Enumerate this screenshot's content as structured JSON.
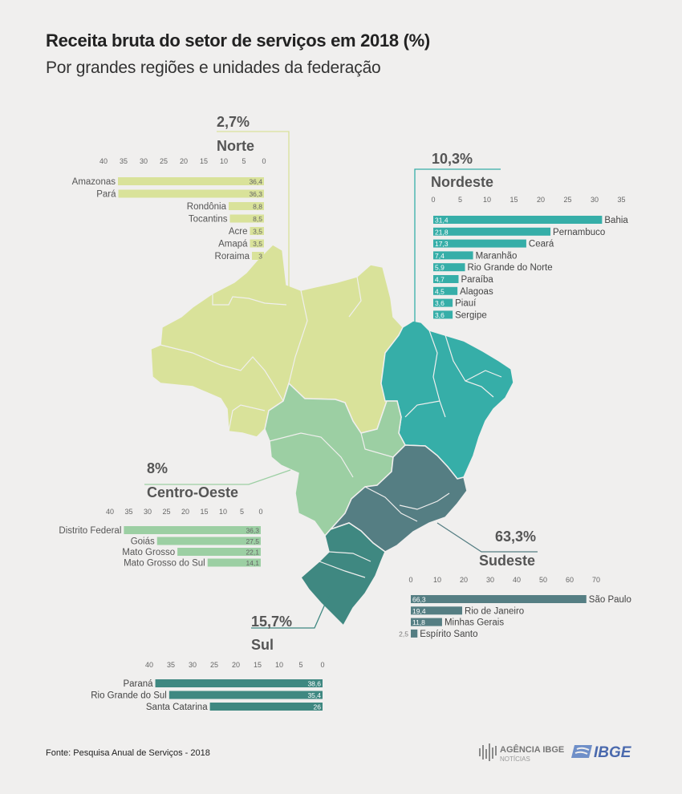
{
  "title": "Receita bruta do setor de serviços em 2018 (%)",
  "subtitle": "Por grandes regiões e unidades da federação",
  "source": "Fonte: Pesquisa Anual de Serviços - 2018",
  "logos": {
    "agencia_top": "AGÊNCIA IBGE",
    "agencia_bottom": "NOTÍCIAS",
    "ibge": "IBGE"
  },
  "colors": {
    "norte": "#d9e29a",
    "nordeste": "#36aea8",
    "centro_oeste": "#9ccfa3",
    "sudeste": "#557e83",
    "sul": "#3f8881",
    "background": "#f0efee"
  },
  "chart_data": [
    {
      "type": "bar",
      "region": "Norte",
      "region_share": "2,7%",
      "orientation": "horizontal",
      "direction": "right-to-left",
      "ticks": [
        "40",
        "35",
        "30",
        "25",
        "20",
        "15",
        "10",
        "5",
        "0"
      ],
      "xlim": [
        0,
        40
      ],
      "categories": [
        "Amazonas",
        "Pará",
        "Rondônia",
        "Tocantins",
        "Acre",
        "Amapá",
        "Roraima"
      ],
      "values": [
        36.4,
        36.3,
        8.8,
        8.5,
        3.5,
        3.5,
        3
      ],
      "value_labels": [
        "36,4",
        "36,3",
        "8,8",
        "8,5",
        "3,5",
        "3,5",
        "3"
      ]
    },
    {
      "type": "bar",
      "region": "Nordeste",
      "region_share": "10,3%",
      "orientation": "horizontal",
      "direction": "left-to-right",
      "ticks": [
        "0",
        "5",
        "10",
        "15",
        "20",
        "25",
        "30",
        "35"
      ],
      "xlim": [
        0,
        35
      ],
      "categories": [
        "Bahia",
        "Pernambuco",
        "Ceará",
        "Maranhão",
        "Rio Grande do Norte",
        "Paraíba",
        "Alagoas",
        "Piauí",
        "Sergipe"
      ],
      "values": [
        31.4,
        21.8,
        17.3,
        7.4,
        5.9,
        4.7,
        4.5,
        3.6,
        3.6
      ],
      "value_labels": [
        "31,4",
        "21,8",
        "17,3",
        "7,4",
        "5,9",
        "4,7",
        "4,5",
        "3,6",
        "3,6"
      ]
    },
    {
      "type": "bar",
      "region": "Centro-Oeste",
      "region_share": "8%",
      "orientation": "horizontal",
      "direction": "right-to-left",
      "ticks": [
        "40",
        "35",
        "30",
        "25",
        "20",
        "15",
        "10",
        "5",
        "0"
      ],
      "xlim": [
        0,
        40
      ],
      "categories": [
        "Distrito Federal",
        "Goiás",
        "Mato Grosso",
        "Mato Grosso do Sul"
      ],
      "values": [
        36.3,
        27.5,
        22.1,
        14.1
      ],
      "value_labels": [
        "36,3",
        "27,5",
        "22,1",
        "14,1"
      ]
    },
    {
      "type": "bar",
      "region": "Sudeste",
      "region_share": "63,3%",
      "orientation": "horizontal",
      "direction": "left-to-right",
      "ticks": [
        "0",
        "10",
        "20",
        "30",
        "40",
        "50",
        "60",
        "70"
      ],
      "xlim": [
        0,
        70
      ],
      "categories": [
        "São Paulo",
        "Rio de Janeiro",
        "Minhas Gerais",
        "Espírito Santo"
      ],
      "values": [
        66.3,
        19.4,
        11.8,
        2.5
      ],
      "value_labels": [
        "66,3",
        "19,4",
        "11,8",
        "2,5"
      ]
    },
    {
      "type": "bar",
      "region": "Sul",
      "region_share": "15,7%",
      "orientation": "horizontal",
      "direction": "right-to-left",
      "ticks": [
        "40",
        "35",
        "30",
        "25",
        "20",
        "15",
        "10",
        "5",
        "0"
      ],
      "xlim": [
        0,
        40
      ],
      "categories": [
        "Paraná",
        "Rio Grande do Sul",
        "Santa Catarina"
      ],
      "values": [
        38.6,
        35.4,
        26
      ],
      "value_labels": [
        "38,6",
        "35,4",
        "26"
      ]
    }
  ]
}
